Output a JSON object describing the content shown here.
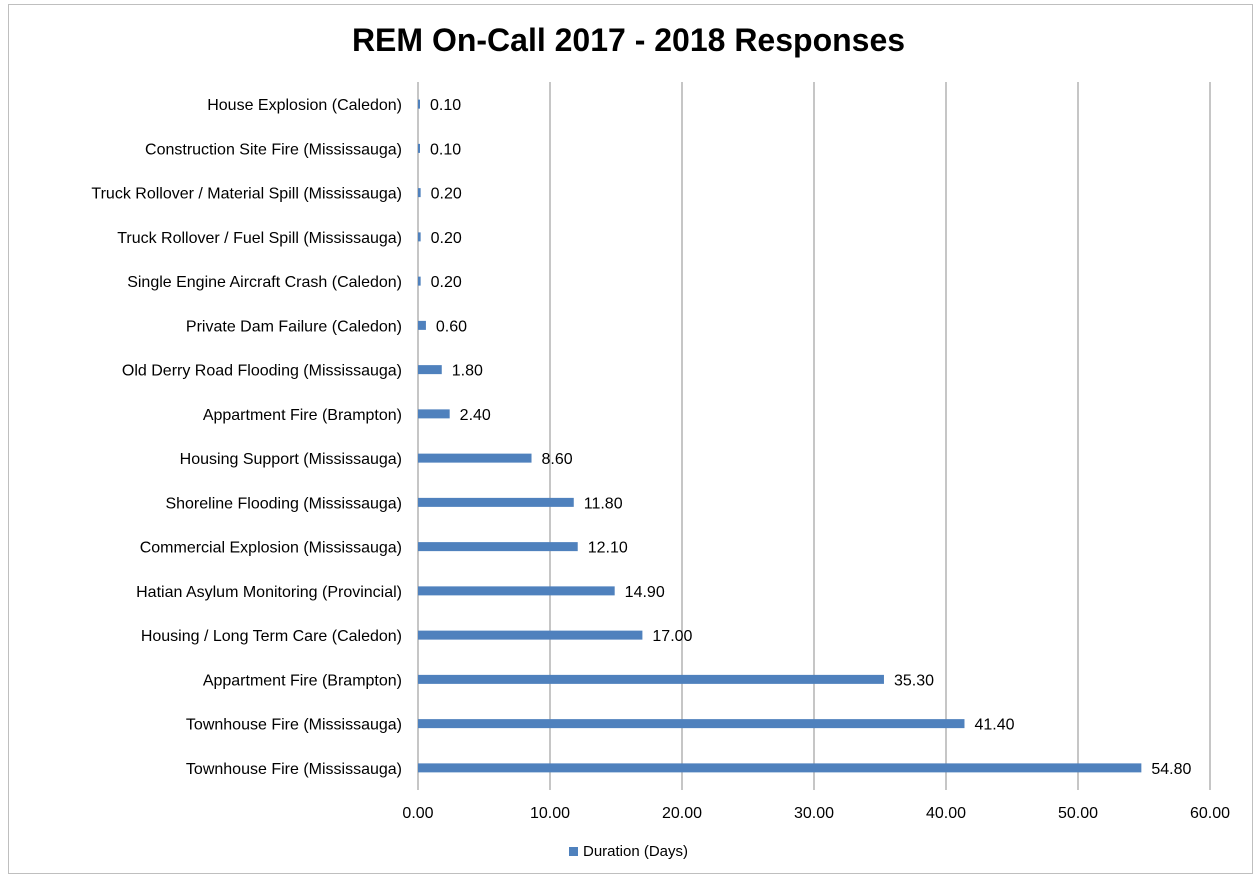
{
  "chart_data": {
    "type": "bar",
    "orientation": "horizontal",
    "title": "REM On-Call 2017 - 2018 Responses",
    "categories": [
      "House Explosion (Caledon)",
      "Construction Site Fire (Mississauga)",
      "Truck Rollover / Material Spill (Mississauga)",
      "Truck Rollover / Fuel Spill (Mississauga)",
      "Single Engine Aircraft Crash (Caledon)",
      "Private Dam Failure (Caledon)",
      "Old Derry Road Flooding (Mississauga)",
      "Appartment Fire (Brampton)",
      "Housing Support (Mississauga)",
      "Shoreline Flooding (Mississauga)",
      "Commercial Explosion (Mississauga)",
      "Hatian Asylum Monitoring (Provincial)",
      "Housing / Long Term Care (Caledon)",
      "Appartment Fire (Brampton)",
      "Townhouse Fire (Mississauga)",
      "Townhouse Fire (Mississauga)"
    ],
    "series": [
      {
        "name": "Duration (Days)",
        "values": [
          0.1,
          0.1,
          0.2,
          0.2,
          0.2,
          0.6,
          1.8,
          2.4,
          8.6,
          11.8,
          12.1,
          14.9,
          17.0,
          35.3,
          41.4,
          54.8
        ],
        "value_labels": [
          "0.10",
          "0.10",
          "0.20",
          "0.20",
          "0.20",
          "0.60",
          "1.80",
          "2.40",
          "8.60",
          "11.80",
          "12.10",
          "14.90",
          "17.00",
          "35.30",
          "41.40",
          "54.80"
        ],
        "color": "#4f81bd"
      }
    ],
    "xlim": [
      0,
      60
    ],
    "xticks": [
      0,
      10,
      20,
      30,
      40,
      50,
      60
    ],
    "xtick_labels": [
      "0.00",
      "10.00",
      "20.00",
      "30.00",
      "40.00",
      "50.00",
      "60.00"
    ],
    "xlabel": "",
    "ylabel": "",
    "grid": "vertical",
    "grid_color": "#8c8c8c",
    "legend": "bottom"
  }
}
